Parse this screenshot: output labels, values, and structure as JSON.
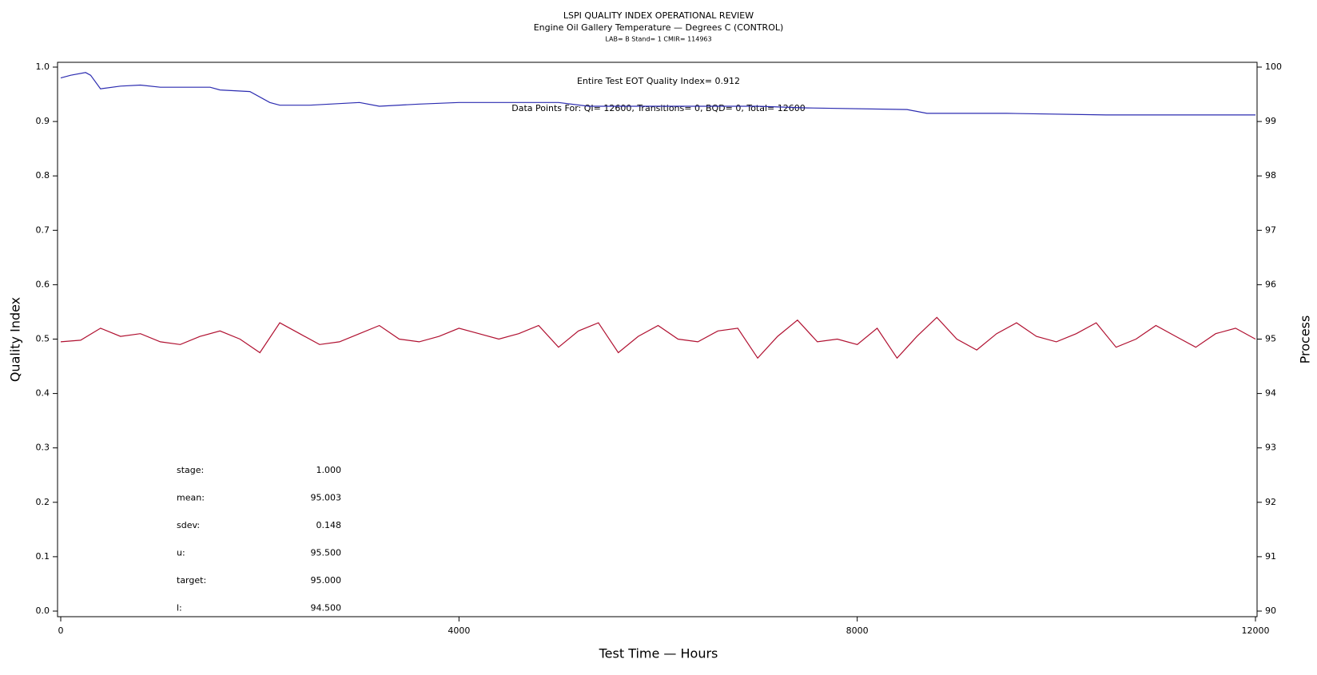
{
  "chart_data": {
    "type": "line",
    "title": "LSPI QUALITY INDEX OPERATIONAL REVIEW",
    "subtitle": "Engine Oil Gallery Temperature — Degrees C (CONTROL)",
    "subtitle2": "LAB= B Stand= 1 CMIR= 114963",
    "annotations": [
      "Entire Test EOT Quality Index=   0.912",
      "Data Points For: QI= 12600, Transitions=    0, BQD=    0, Total= 12600"
    ],
    "stats": [
      {
        "label": "stage:",
        "value": "1.000"
      },
      {
        "label": "mean:",
        "value": "95.003"
      },
      {
        "label": "sdev:",
        "value": "0.148"
      },
      {
        "label": "u:",
        "value": "95.500"
      },
      {
        "label": "target:",
        "value": "95.000"
      },
      {
        "label": "l:",
        "value": "94.500"
      }
    ],
    "xlabel": "Test Time — Hours",
    "ylabel": "Quality Index",
    "y2label": "Process",
    "xlim": [
      0,
      12000
    ],
    "xticks": [
      0,
      4000,
      8000,
      12000
    ],
    "ylim": [
      0,
      1
    ],
    "yticks": [
      {
        "value": 0,
        "label": "0.0"
      },
      0.1,
      0.2,
      0.3,
      0.4,
      0.5,
      0.6,
      0.7,
      0.8,
      0.9,
      {
        "value": 1,
        "label": "1.0"
      }
    ],
    "y2lim": [
      90,
      100
    ],
    "y2ticks": [
      90,
      91,
      92,
      93,
      94,
      95,
      96,
      97,
      98,
      99,
      100
    ],
    "series": [
      {
        "color": "#2b2bb0",
        "x": [
          0,
          100,
          250,
          300,
          400,
          600,
          800,
          1000,
          1500,
          1600,
          1900,
          2100,
          2200,
          2500,
          3000,
          3200,
          3600,
          4000,
          4500,
          5000,
          5300,
          6000,
          7000,
          7500,
          8500,
          8700,
          9500,
          10500,
          12000
        ],
        "values": [
          0.98,
          0.985,
          0.99,
          0.985,
          0.96,
          0.965,
          0.967,
          0.963,
          0.963,
          0.958,
          0.955,
          0.935,
          0.93,
          0.93,
          0.935,
          0.928,
          0.932,
          0.935,
          0.935,
          0.935,
          0.928,
          0.928,
          0.928,
          0.925,
          0.922,
          0.915,
          0.915,
          0.912,
          0.912
        ]
      },
      {
        "color": "#b01030",
        "axis": "y2",
        "x": [
          0,
          200,
          400,
          600,
          800,
          1000,
          1200,
          1400,
          1600,
          1800,
          2000,
          2200,
          2400,
          2600,
          2800,
          3000,
          3200,
          3400,
          3600,
          3800,
          4000,
          4200,
          4400,
          4600,
          4800,
          5000,
          5200,
          5400,
          5600,
          5800,
          6000,
          6200,
          6400,
          6600,
          6800,
          7000,
          7200,
          7400,
          7600,
          7800,
          8000,
          8200,
          8400,
          8600,
          8800,
          9000,
          9200,
          9400,
          9600,
          9800,
          10000,
          10200,
          10400,
          10600,
          10800,
          11000,
          11200,
          11400,
          11600,
          11800,
          12000
        ],
        "values": [
          94.95,
          94.98,
          95.2,
          95.05,
          95.1,
          94.95,
          94.9,
          95.05,
          95.15,
          95.0,
          94.75,
          95.3,
          95.1,
          94.9,
          94.95,
          95.1,
          95.25,
          95.0,
          94.95,
          95.05,
          95.2,
          95.1,
          95.0,
          95.1,
          95.25,
          94.85,
          95.15,
          95.3,
          94.75,
          95.05,
          95.25,
          95.0,
          94.95,
          95.15,
          95.2,
          94.65,
          95.05,
          95.35,
          94.95,
          95.0,
          94.9,
          95.2,
          94.65,
          95.05,
          95.4,
          95.0,
          94.8,
          95.1,
          95.3,
          95.05,
          94.95,
          95.1,
          95.3,
          94.85,
          95.0,
          95.25,
          95.05,
          94.85,
          95.1,
          95.2,
          95.0
        ]
      }
    ]
  }
}
